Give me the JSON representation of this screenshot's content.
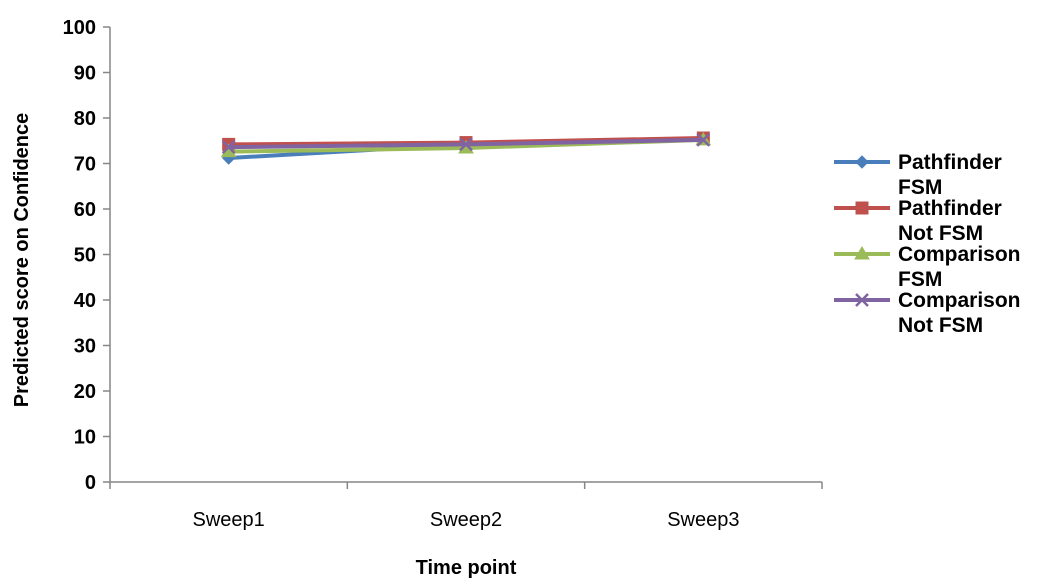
{
  "chart_data": {
    "type": "line",
    "categories": [
      "Sweep1",
      "Sweep2",
      "Sweep3"
    ],
    "xlabel": "Time point",
    "ylabel": "Predicted score on Confidence",
    "ylim": [
      0,
      100
    ],
    "yticks": [
      0,
      10,
      20,
      30,
      40,
      50,
      60,
      70,
      80,
      90,
      100
    ],
    "grid": false,
    "legend_position": "right",
    "series": [
      {
        "name": [
          "Pathfinder",
          "FSM"
        ],
        "values": [
          71.2,
          74.2,
          75.4
        ],
        "color": "#4a7ebb",
        "marker": "diamond"
      },
      {
        "name": [
          "Pathfinder",
          "Not FSM"
        ],
        "values": [
          74.2,
          74.6,
          75.6
        ],
        "color": "#c0504d",
        "marker": "square"
      },
      {
        "name": [
          "Comparison",
          "FSM"
        ],
        "values": [
          72.6,
          73.4,
          75.2
        ],
        "color": "#9bbb59",
        "marker": "triangle"
      },
      {
        "name": [
          "Comparison",
          "Not FSM"
        ],
        "values": [
          73.6,
          74.2,
          75.2
        ],
        "color": "#8064a2",
        "marker": "x"
      }
    ]
  }
}
